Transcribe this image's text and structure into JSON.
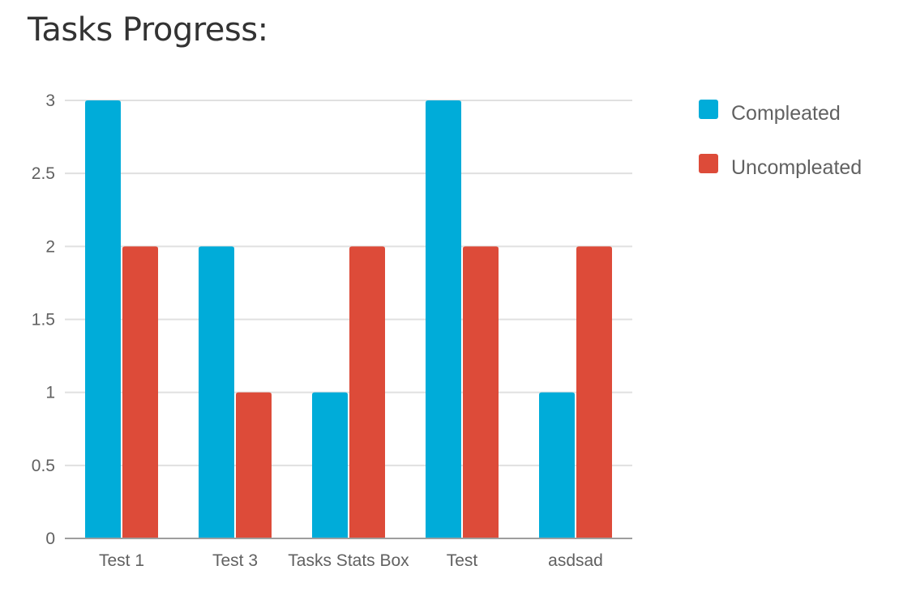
{
  "page": {
    "title": "Tasks Progress:"
  },
  "chart_data": {
    "type": "bar",
    "categories": [
      "Test 1",
      "Test 3",
      "Tasks Stats Box",
      "Test",
      "asdsad"
    ],
    "series": [
      {
        "name": "Compleated",
        "values": [
          3,
          2,
          1,
          3,
          1
        ],
        "color": "#00acd9"
      },
      {
        "name": "Uncompleated",
        "values": [
          2,
          1,
          2,
          2,
          2
        ],
        "color": "#dd4b39"
      }
    ],
    "ylim": [
      0,
      3
    ],
    "yticks": [
      "0",
      "0.5",
      "1",
      "1.5",
      "2",
      "2.5",
      "3"
    ],
    "grid": true,
    "legend_position": "right",
    "axis_color": "#9e9e9e",
    "grid_color": "#e0e0e0"
  }
}
